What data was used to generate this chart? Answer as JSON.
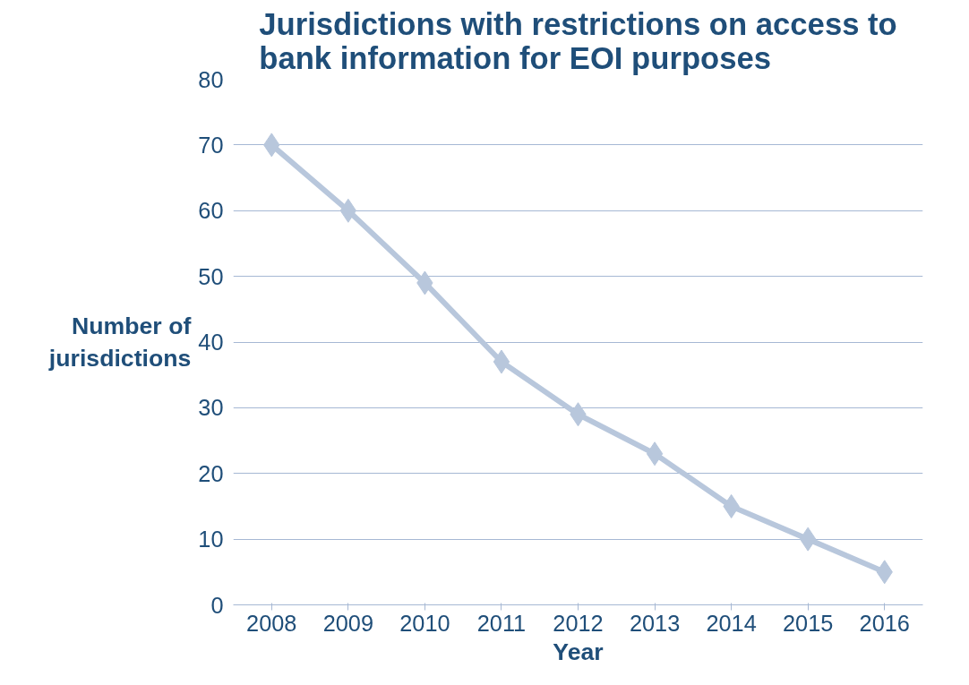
{
  "chart_data": {
    "type": "line",
    "title": "Jurisdictions with restrictions on access to bank information for EOI purposes",
    "xlabel": "Year",
    "ylabel": "Number of jurisdictions",
    "categories": [
      "2008",
      "2009",
      "2010",
      "2011",
      "2012",
      "2013",
      "2014",
      "2015",
      "2016"
    ],
    "series": [
      {
        "color": "#b8c7dc",
        "values": [
          70,
          60,
          49,
          37,
          29,
          23,
          15,
          10,
          5
        ]
      }
    ],
    "ylim": [
      0,
      80
    ],
    "yticks": [
      0,
      10,
      20,
      30,
      40,
      50,
      60,
      70,
      80
    ],
    "grid": "y",
    "marker": "diamond",
    "line_style": "solid"
  }
}
